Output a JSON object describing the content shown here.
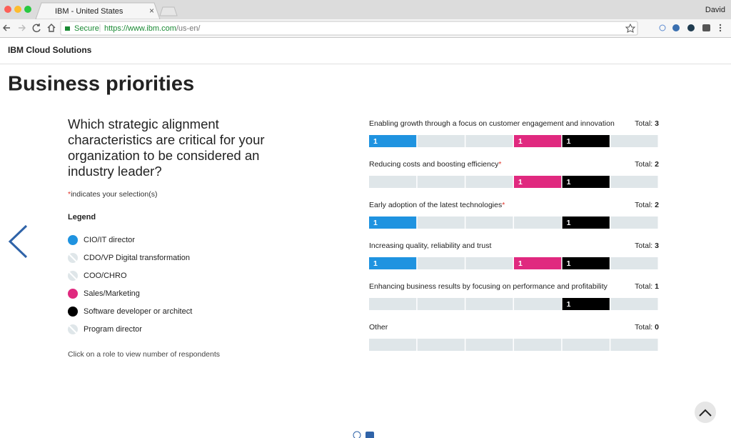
{
  "browser": {
    "tab_title": "IBM - United States",
    "user": "David",
    "secure": "Secure",
    "url_host": "https://www.ibm.com",
    "url_path": "/us-en/"
  },
  "header": {
    "brand": "IBM Cloud Solutions"
  },
  "content": {
    "title": "Business priorities",
    "question": "Which strategic alignment characteristics are critical for your organization to be considered an industry leader?",
    "selection_marker": "*",
    "note": "indicates your selection(s)",
    "legend_title": "Legend",
    "roles": [
      {
        "name": "CIO/IT director",
        "color": "#1f93e0"
      },
      {
        "name": "CDO/VP Digital transformation",
        "color": "#dfe6e9"
      },
      {
        "name": "COO/CHRO",
        "color": "#dfe6e9"
      },
      {
        "name": "Sales/Marketing",
        "color": "#e0297f"
      },
      {
        "name": "Software developer or architect",
        "color": "#000000"
      },
      {
        "name": "Program director",
        "color": "#dfe6e9"
      }
    ],
    "hint": "Click on a role to view number of respondents"
  },
  "priorities": {
    "total_label": "Total:",
    "items": [
      {
        "label": "Enabling growth through a focus on customer engagement and innovation",
        "selected": false,
        "total": 3,
        "counts": [
          1,
          null,
          null,
          1,
          1,
          null
        ]
      },
      {
        "label": "Reducing costs and boosting efficiency",
        "selected": true,
        "total": 2,
        "counts": [
          null,
          null,
          null,
          1,
          1,
          null
        ]
      },
      {
        "label": "Early adoption of the latest technologies",
        "selected": true,
        "total": 2,
        "counts": [
          1,
          null,
          null,
          null,
          1,
          null
        ]
      },
      {
        "label": "Increasing quality, reliability and trust",
        "selected": false,
        "total": 3,
        "counts": [
          1,
          null,
          null,
          1,
          1,
          null
        ]
      },
      {
        "label": "Enhancing business results by focusing on performance and profitability",
        "selected": false,
        "total": 1,
        "counts": [
          null,
          null,
          null,
          null,
          1,
          null
        ]
      },
      {
        "label": "Other",
        "selected": false,
        "total": 0,
        "counts": [
          null,
          null,
          null,
          null,
          null,
          null
        ]
      }
    ]
  }
}
